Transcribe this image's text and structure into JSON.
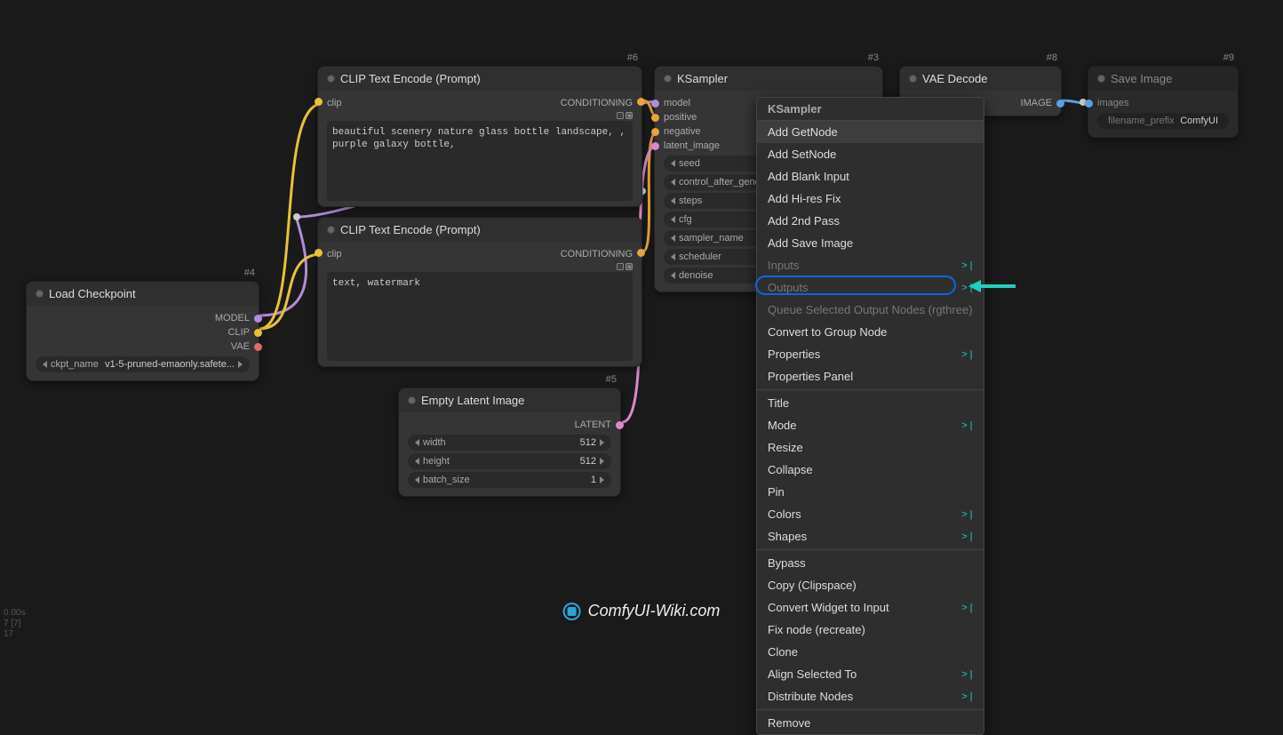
{
  "colors": {
    "model": "#b28cd9",
    "clip": "#e6c337",
    "vae": "#e06a6a",
    "conditioning": "#e8a33d",
    "latent": "#d989c9",
    "image": "#5aa0e0",
    "green": "#5dc15d",
    "highlight": "#0b67e0",
    "teal": "#1ed0c1"
  },
  "nodes": {
    "loadckpt": {
      "id": "#4",
      "title": "Load Checkpoint",
      "outputs": [
        {
          "label": "MODEL",
          "color": "model"
        },
        {
          "label": "CLIP",
          "color": "clip"
        },
        {
          "label": "VAE",
          "color": "vae"
        }
      ],
      "widget": {
        "label": "ckpt_name",
        "value": "v1-5-pruned-emaonly.safete..."
      }
    },
    "clip1": {
      "id": "#6",
      "title": "CLIP Text Encode (Prompt)",
      "in_label": "clip",
      "out_label": "CONDITIONING",
      "text": "beautiful scenery nature glass bottle landscape, , purple galaxy bottle,"
    },
    "clip2": {
      "id": "#5",
      "title": "CLIP Text Encode (Prompt)",
      "in_label": "clip",
      "out_label": "CONDITIONING",
      "text": "text, watermark"
    },
    "latent": {
      "id": "#5",
      "title": "Empty Latent Image",
      "out_label": "LATENT",
      "widgets": [
        {
          "label": "width",
          "value": "512"
        },
        {
          "label": "height",
          "value": "512"
        },
        {
          "label": "batch_size",
          "value": "1"
        }
      ]
    },
    "ksampler": {
      "id": "#3",
      "title": "KSampler",
      "inputs": [
        {
          "label": "model",
          "color": "model"
        },
        {
          "label": "positive",
          "color": "conditioning"
        },
        {
          "label": "negative",
          "color": "conditioning"
        },
        {
          "label": "latent_image",
          "color": "latent"
        }
      ],
      "widgets": [
        {
          "label": "seed"
        },
        {
          "label": "control_after_generat"
        },
        {
          "label": "steps"
        },
        {
          "label": "cfg"
        },
        {
          "label": "sampler_name"
        },
        {
          "label": "scheduler"
        },
        {
          "label": "denoise"
        }
      ]
    },
    "vae": {
      "id": "#8",
      "title": "VAE Decode",
      "out_label": "IMAGE"
    },
    "save": {
      "id": "#9",
      "title": "Save Image",
      "in_label": "images",
      "widget": {
        "label": "filename_prefix",
        "value": "ComfyUI"
      }
    }
  },
  "context_menu": {
    "title": "KSampler",
    "groups": [
      [
        {
          "label": "Add GetNode",
          "hover": true
        },
        {
          "label": "Add SetNode"
        },
        {
          "label": "Add Blank Input"
        },
        {
          "label": "Add Hi-res Fix"
        },
        {
          "label": "Add 2nd Pass"
        },
        {
          "label": "Add Save Image"
        },
        {
          "label": "Inputs",
          "sub": true,
          "disabled": true
        },
        {
          "label": "Outputs",
          "sub": true,
          "disabled": true
        },
        {
          "label": "Queue Selected Output Nodes (rgthree)",
          "disabled": true
        },
        {
          "label": "Convert to Group Node",
          "highlight": true
        },
        {
          "label": "Properties",
          "sub": true
        },
        {
          "label": "Properties Panel"
        }
      ],
      [
        {
          "label": "Title"
        },
        {
          "label": "Mode",
          "sub": true
        },
        {
          "label": "Resize"
        },
        {
          "label": "Collapse"
        },
        {
          "label": "Pin"
        },
        {
          "label": "Colors",
          "sub": true
        },
        {
          "label": "Shapes",
          "sub": true
        }
      ],
      [
        {
          "label": "Bypass"
        },
        {
          "label": "Copy (Clipspace)"
        },
        {
          "label": "Convert Widget to Input",
          "sub": true
        },
        {
          "label": "Fix node (recreate)"
        },
        {
          "label": "Clone"
        },
        {
          "label": "Align Selected To",
          "sub": true
        },
        {
          "label": "Distribute Nodes",
          "sub": true
        }
      ],
      [
        {
          "label": "Remove"
        }
      ]
    ]
  },
  "watermark": "ComfyUI-Wiki.com",
  "stats": [
    "0.00s",
    "7 [7]",
    "17"
  ]
}
